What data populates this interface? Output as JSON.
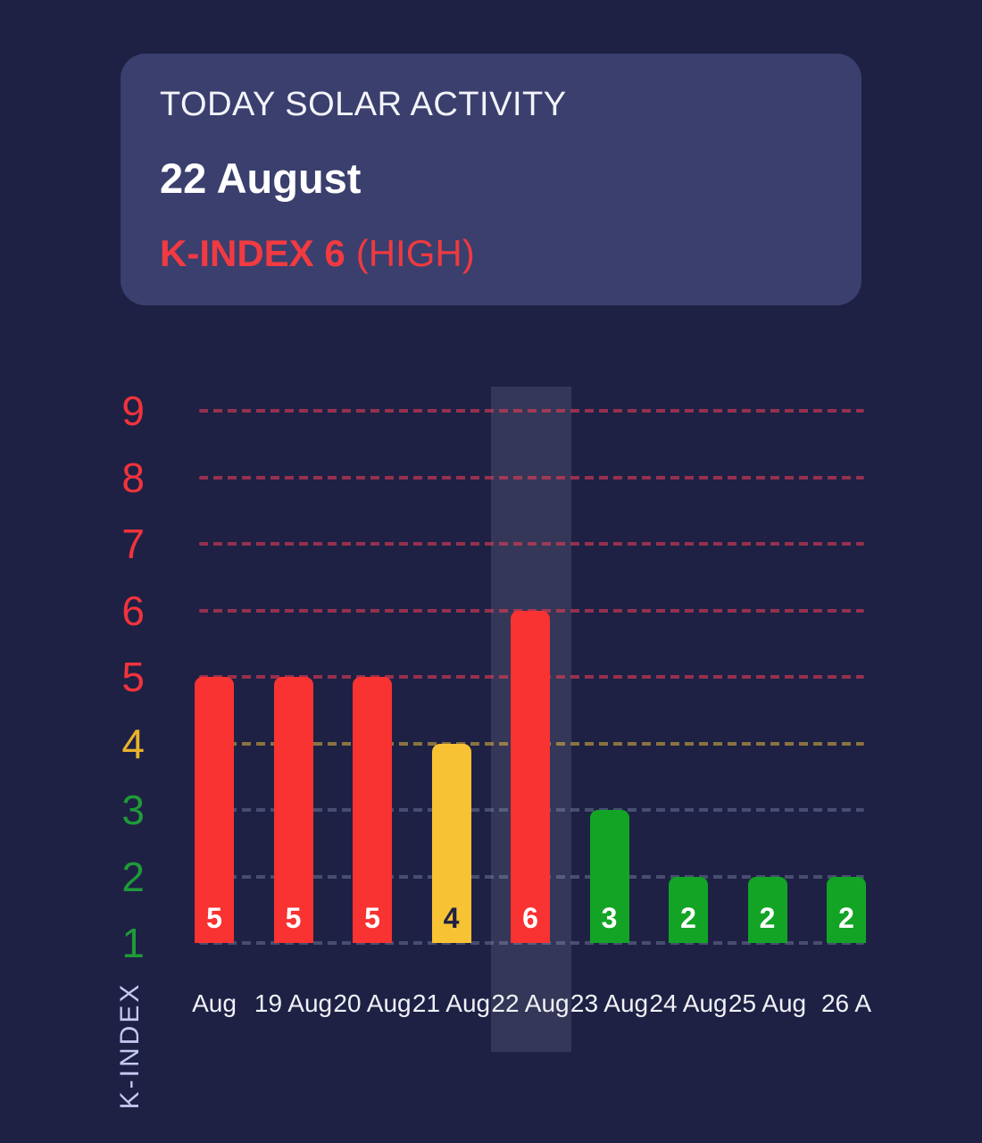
{
  "header": {
    "title": "TODAY SOLAR ACTIVITY",
    "date": "22 August",
    "kindex": "K-INDEX 6",
    "kindex_status": "(HIGH)"
  },
  "chart_data": {
    "type": "bar",
    "title": "TODAY SOLAR ACTIVITY — 22 August",
    "ylabel": "K-INDEX",
    "xlabel": "",
    "categories": [
      "Aug",
      "19 Aug",
      "20 Aug",
      "21 Aug",
      "22 Aug",
      "23 Aug",
      "24 Aug",
      "25 Aug",
      "26 A"
    ],
    "values": [
      5,
      5,
      5,
      4,
      6,
      3,
      2,
      2,
      2
    ],
    "bar_colors": [
      "#f93232",
      "#f93232",
      "#f93232",
      "#f7c233",
      "#f93232",
      "#13a426",
      "#13a426",
      "#13a426",
      "#13a426"
    ],
    "value_label_colors": [
      "#ffffff",
      "#ffffff",
      "#ffffff",
      "#1e2144",
      "#ffffff",
      "#ffffff",
      "#ffffff",
      "#ffffff",
      "#ffffff"
    ],
    "yticks": [
      9,
      8,
      7,
      6,
      5,
      4,
      3,
      2,
      1
    ],
    "ytick_colors": [
      "#f2333c",
      "#f2333c",
      "#f2333c",
      "#f2333c",
      "#f2333c",
      "#e8b22c",
      "#1f9a38",
      "#1f9a38",
      "#1f9a38"
    ],
    "gridline_colors": [
      "rgba(248,60,86,0.55)",
      "rgba(248,60,86,0.55)",
      "rgba(248,60,86,0.55)",
      "rgba(248,60,86,0.55)",
      "rgba(248,60,86,0.55)",
      "rgba(247,195,60,0.5)",
      "rgba(170,180,215,0.3)",
      "rgba(170,180,215,0.3)",
      "rgba(170,180,215,0.3)"
    ],
    "ylim": [
      1,
      9
    ],
    "grid": "horizontal-dashed",
    "legend": "none",
    "highlighted_category": "22 Aug"
  },
  "colors": {
    "background": "#1e2144",
    "card_background": "#3a3f6e",
    "highlight_band": "rgba(255,255,255,0.10)",
    "severity_high": "#f93232",
    "severity_medium": "#f7c233",
    "severity_low": "#13a426",
    "accent_red_text": "#f23a40",
    "axis_title_color": "#c5c9f2"
  }
}
